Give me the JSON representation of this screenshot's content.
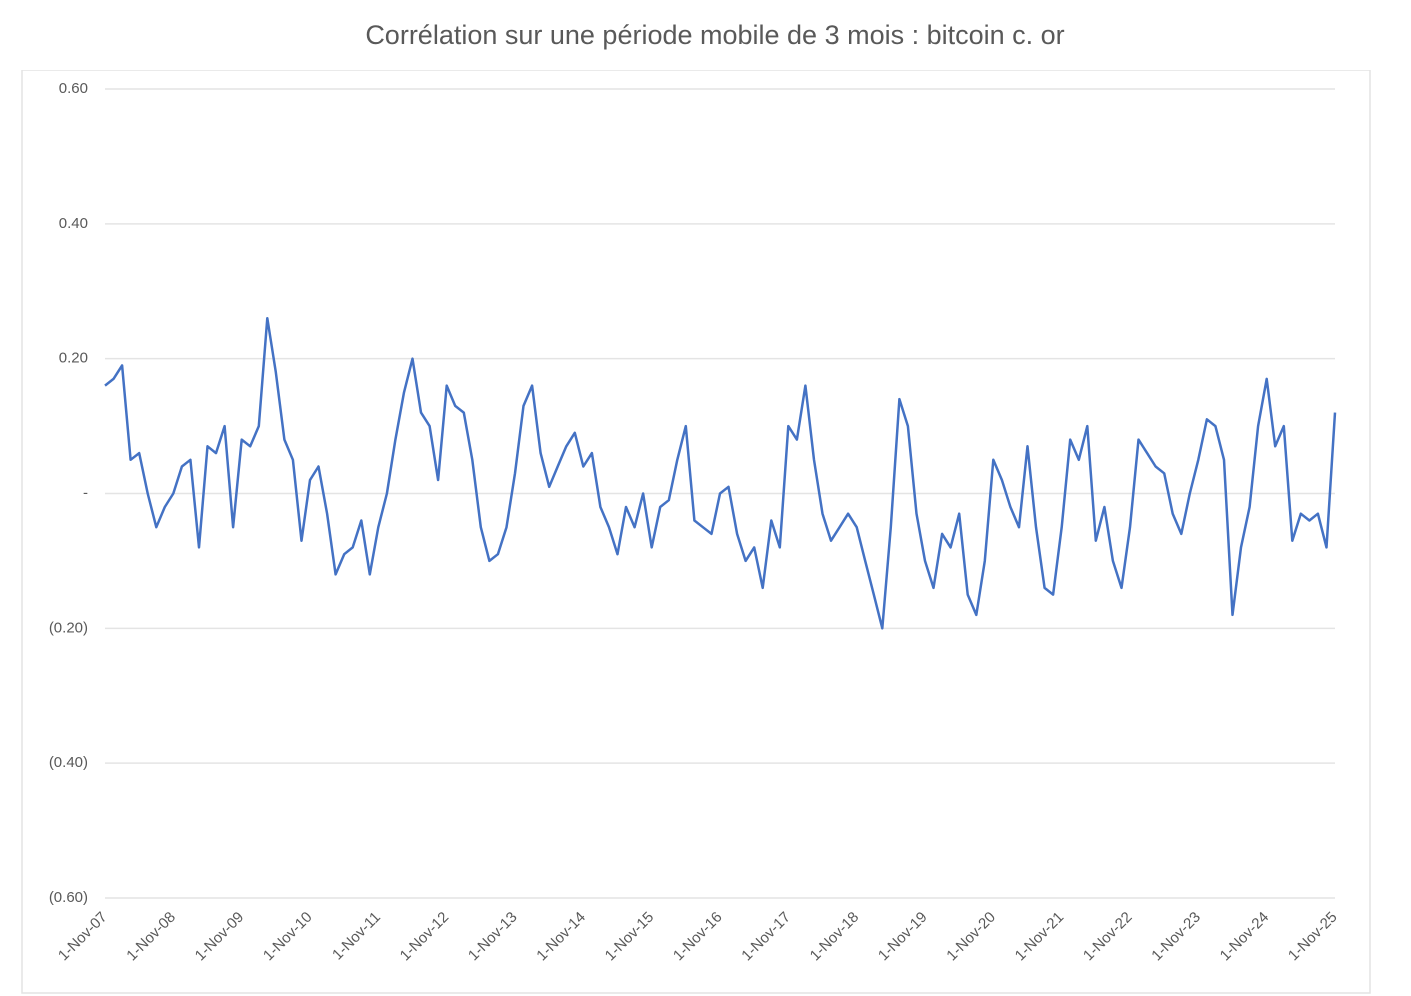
{
  "chart_data": {
    "type": "line",
    "title": "Corrélation sur une période mobile de 3 mois : bitcoin c. or",
    "categories": [
      "1-Nov-07",
      null,
      null,
      null,
      null,
      null,
      null,
      null,
      "1-Nov-08",
      null,
      null,
      null,
      null,
      null,
      null,
      null,
      "1-Nov-09",
      null,
      null,
      null,
      null,
      null,
      null,
      null,
      "1-Nov-10",
      null,
      null,
      null,
      null,
      null,
      null,
      null,
      "1-Nov-11",
      null,
      null,
      null,
      null,
      null,
      null,
      null,
      "1-Nov-12",
      null,
      null,
      null,
      null,
      null,
      null,
      null,
      "1-Nov-13",
      null,
      null,
      null,
      null,
      null,
      null,
      null,
      "1-Nov-14",
      null,
      null,
      null,
      null,
      null,
      null,
      null,
      "1-Nov-15",
      null,
      null,
      null,
      null,
      null,
      null,
      null,
      "1-Nov-16",
      null,
      null,
      null,
      null,
      null,
      null,
      null,
      "1-Nov-17",
      null,
      null,
      null,
      null,
      null,
      null,
      null,
      "1-Nov-18",
      null,
      null,
      null,
      null,
      null,
      null,
      null,
      "1-Nov-19",
      null,
      null,
      null,
      null,
      null,
      null,
      null,
      "1-Nov-20",
      null,
      null,
      null,
      null,
      null,
      null,
      null,
      "1-Nov-21",
      null,
      null,
      null,
      null,
      null,
      null,
      null,
      "1-Nov-22",
      null,
      null,
      null,
      null,
      null,
      null,
      null,
      "1-Nov-23",
      null,
      null,
      null,
      null,
      null,
      null,
      null,
      "1-Nov-24",
      null,
      null,
      null,
      null,
      null,
      null,
      null,
      "1-Nov-25"
    ],
    "series": [
      {
        "color": "#4472c4",
        "values": [
          0.16,
          0.17,
          0.19,
          0.05,
          0.06,
          0.0,
          -0.05,
          -0.02,
          0.0,
          0.04,
          0.05,
          -0.08,
          0.07,
          0.06,
          0.1,
          -0.05,
          0.08,
          0.07,
          0.1,
          0.26,
          0.18,
          0.08,
          0.05,
          -0.07,
          0.02,
          0.04,
          -0.03,
          -0.12,
          -0.09,
          -0.08,
          -0.04,
          -0.12,
          -0.05,
          0.0,
          0.08,
          0.15,
          0.2,
          0.12,
          0.1,
          0.02,
          0.16,
          0.13,
          0.12,
          0.05,
          -0.05,
          -0.1,
          -0.09,
          -0.05,
          0.03,
          0.13,
          0.16,
          0.06,
          0.01,
          0.04,
          0.07,
          0.09,
          0.04,
          0.06,
          -0.02,
          -0.05,
          -0.09,
          -0.02,
          -0.05,
          0.0,
          -0.08,
          -0.02,
          -0.01,
          0.05,
          0.1,
          -0.04,
          -0.05,
          -0.06,
          0.0,
          0.01,
          -0.06,
          -0.1,
          -0.08,
          -0.14,
          -0.04,
          -0.08,
          0.1,
          0.08,
          0.16,
          0.05,
          -0.03,
          -0.07,
          -0.05,
          -0.03,
          -0.05,
          -0.1,
          -0.15,
          -0.2,
          -0.05,
          0.14,
          0.1,
          -0.03,
          -0.1,
          -0.14,
          -0.06,
          -0.08,
          -0.03,
          -0.15,
          -0.18,
          -0.1,
          0.05,
          0.02,
          -0.02,
          -0.05,
          0.07,
          -0.05,
          -0.14,
          -0.15,
          -0.05,
          0.08,
          0.05,
          0.1,
          -0.07,
          -0.02,
          -0.1,
          -0.14,
          -0.05,
          0.08,
          0.06,
          0.04,
          0.03,
          -0.03,
          -0.06,
          0.0,
          0.05,
          0.11,
          0.1,
          0.05,
          -0.18,
          -0.08,
          -0.02,
          0.1,
          0.17,
          0.07,
          0.1,
          -0.07,
          -0.03,
          -0.04,
          -0.03,
          -0.08,
          0.12
        ]
      }
    ],
    "ylim": [
      -0.6,
      0.6
    ],
    "yticks": [
      {
        "value": 0.6,
        "label": "0.60"
      },
      {
        "value": 0.4,
        "label": "0.40"
      },
      {
        "value": 0.2,
        "label": "0.20"
      },
      {
        "value": 0,
        "label": "-"
      },
      {
        "value": -0.2,
        "label": "(0.20)"
      },
      {
        "value": -0.4,
        "label": "(0.40)"
      },
      {
        "value": -0.6,
        "label": "(0.60)"
      }
    ],
    "grid": true
  }
}
